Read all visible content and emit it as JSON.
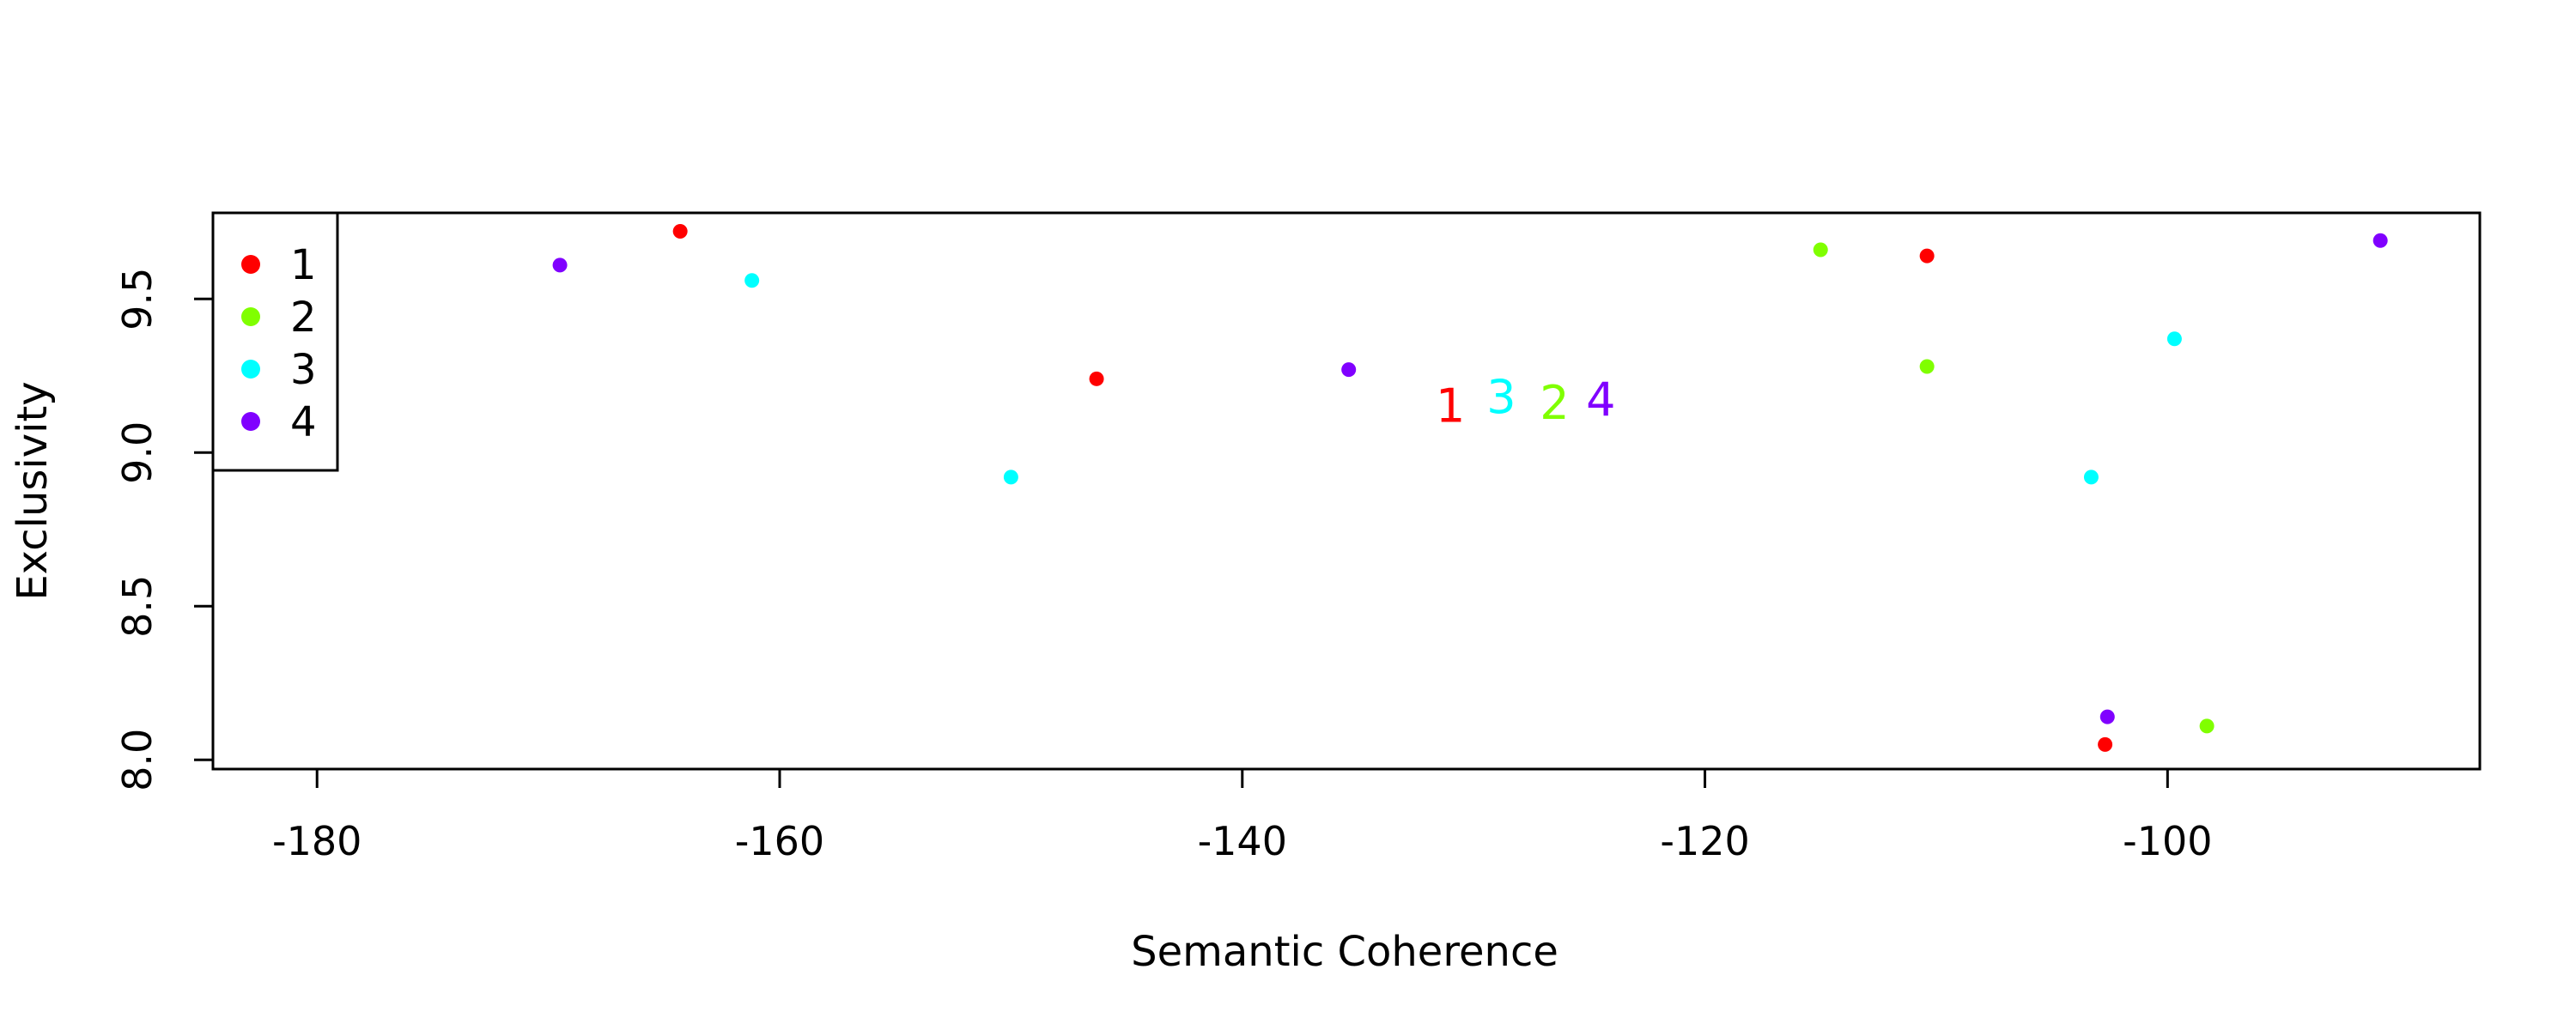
{
  "chart_data": {
    "type": "scatter",
    "title": "",
    "xlabel": "Semantic Coherence",
    "ylabel": "Exclusivity",
    "xlim": [
      -184.5,
      -86.5
    ],
    "ylim": [
      7.97,
      9.78
    ],
    "x_ticks": [
      -180,
      -160,
      -140,
      -120,
      -100
    ],
    "y_ticks": [
      8.0,
      8.5,
      9.0,
      9.5
    ],
    "x_tick_labels": [
      "-180",
      "-160",
      "-140",
      "-120",
      "-100"
    ],
    "y_tick_labels": [
      "8.0",
      "8.5",
      "9.0",
      "9.5"
    ],
    "grid": false,
    "legend_position": "top-left",
    "series": [
      {
        "name": "1",
        "color": "#ff0000",
        "points": [
          [
            -164.3,
            9.72
          ],
          [
            -146.3,
            9.24
          ],
          [
            -110.4,
            9.64
          ],
          [
            -102.7,
            8.05
          ]
        ],
        "label_position": [
          -131.0,
          9.15
        ]
      },
      {
        "name": "2",
        "color": "#80ff00",
        "points": [
          [
            -115.0,
            9.66
          ],
          [
            -110.4,
            9.28
          ],
          [
            -98.3,
            8.11
          ]
        ],
        "label_position": [
          -126.5,
          9.16
        ]
      },
      {
        "name": "3",
        "color": "#00ffff",
        "points": [
          [
            -161.2,
            9.56
          ],
          [
            -150.0,
            8.92
          ],
          [
            -103.3,
            8.92
          ],
          [
            -99.7,
            9.37
          ]
        ],
        "label_position": [
          -128.8,
          9.18
        ]
      },
      {
        "name": "4",
        "color": "#8000ff",
        "points": [
          [
            -169.5,
            9.61
          ],
          [
            -135.4,
            9.27
          ],
          [
            -102.6,
            8.14
          ],
          [
            -90.8,
            9.69
          ]
        ],
        "label_position": [
          -124.5,
          9.17
        ]
      }
    ]
  }
}
